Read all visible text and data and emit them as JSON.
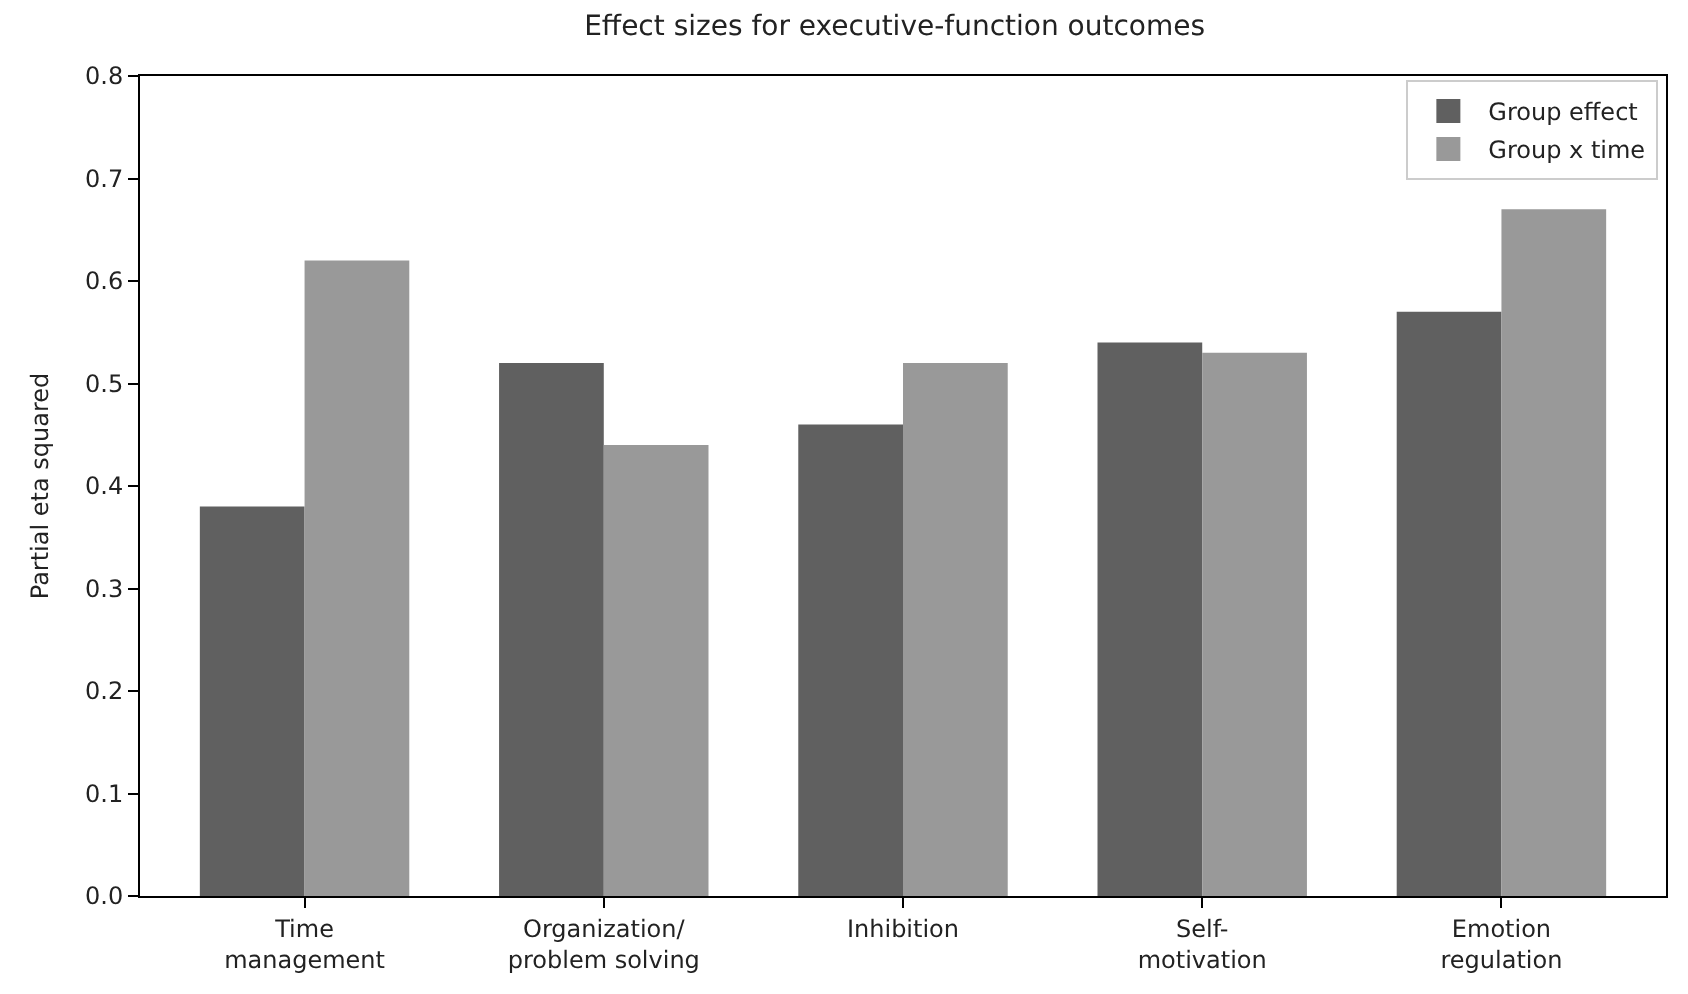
{
  "chart_data": {
    "type": "bar",
    "title": "Effect sizes for executive-function outcomes",
    "ylabel": "Partial eta squared",
    "categories": [
      "Time\nmanagement",
      "Organization/\nproblem solving",
      "Inhibition",
      "Self-\nmotivation",
      "Emotion\nregulation"
    ],
    "series": [
      {
        "name": "Group effect",
        "color": "#606060",
        "values": [
          0.38,
          0.52,
          0.46,
          0.54,
          0.57
        ]
      },
      {
        "name": "Group x time",
        "color": "#999999",
        "values": [
          0.62,
          0.44,
          0.52,
          0.53,
          0.67
        ]
      }
    ],
    "ylim": [
      0,
      0.8
    ],
    "yticks": [
      {
        "value": 0,
        "label": "0.0"
      },
      0.1,
      0.2,
      0.3,
      0.4,
      0.5,
      0.6,
      0.7,
      0.8
    ],
    "grid": false,
    "legend": "top right"
  }
}
